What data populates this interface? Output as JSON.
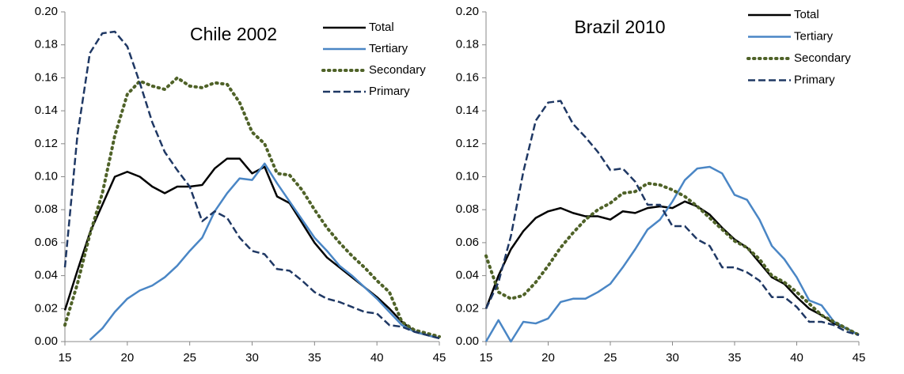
{
  "chart_data": [
    {
      "type": "line",
      "title": "Chile 2002",
      "x": [
        15,
        16,
        17,
        18,
        19,
        20,
        21,
        22,
        23,
        24,
        25,
        26,
        27,
        28,
        29,
        30,
        31,
        32,
        33,
        34,
        35,
        36,
        37,
        38,
        39,
        40,
        41,
        42,
        43,
        44,
        45
      ],
      "xlim": [
        15,
        45
      ],
      "xticks": [
        15,
        20,
        25,
        30,
        35,
        40,
        45
      ],
      "ylim": [
        0,
        0.2
      ],
      "yticks": [
        {
          "value": 0,
          "label": "0.00"
        },
        {
          "value": 0.02,
          "label": "0.02"
        },
        {
          "value": 0.04,
          "label": "0.04"
        },
        {
          "value": 0.06,
          "label": "0.06"
        },
        {
          "value": 0.08,
          "label": "0.08"
        },
        {
          "value": 0.1,
          "label": "0.10"
        },
        {
          "value": 0.12,
          "label": "0.12"
        },
        {
          "value": 0.14,
          "label": "0.14"
        },
        {
          "value": 0.16,
          "label": "0.16"
        },
        {
          "value": 0.18,
          "label": "0.18"
        },
        {
          "value": 0.2,
          "label": "0.20"
        }
      ],
      "grid": false,
      "legend": "top-right",
      "series": [
        {
          "name": "Total",
          "color": "#000000",
          "style": "solid",
          "values": [
            0.019,
            0.043,
            0.066,
            0.083,
            0.1,
            0.103,
            0.1,
            0.094,
            0.09,
            0.094,
            0.094,
            0.095,
            0.105,
            0.111,
            0.111,
            0.102,
            0.106,
            0.088,
            0.084,
            0.072,
            0.06,
            0.051,
            0.045,
            0.039,
            0.033,
            0.027,
            0.02,
            0.012,
            0.006,
            0.004,
            0.002
          ]
        },
        {
          "name": "Tertiary",
          "color": "#4a86c5",
          "style": "solid",
          "values": [
            null,
            null,
            0.001,
            0.008,
            0.018,
            0.026,
            0.031,
            0.034,
            0.039,
            0.046,
            0.055,
            0.063,
            0.079,
            0.09,
            0.099,
            0.098,
            0.108,
            0.096,
            0.085,
            0.074,
            0.063,
            0.055,
            0.046,
            0.04,
            0.033,
            0.026,
            0.018,
            0.01,
            0.006,
            0.004,
            0.002
          ]
        },
        {
          "name": "Secondary",
          "color": "#4f6228",
          "style": "dotted",
          "values": [
            0.01,
            0.035,
            0.065,
            0.09,
            0.125,
            0.15,
            0.158,
            0.155,
            0.153,
            0.16,
            0.155,
            0.154,
            0.157,
            0.156,
            0.145,
            0.127,
            0.12,
            0.102,
            0.101,
            0.092,
            0.08,
            0.069,
            0.06,
            0.052,
            0.045,
            0.037,
            0.03,
            0.012,
            0.007,
            0.005,
            0.003
          ]
        },
        {
          "name": "Primary",
          "color": "#1f3864",
          "style": "dashed",
          "values": [
            0.045,
            0.125,
            0.175,
            0.187,
            0.188,
            0.179,
            0.157,
            0.133,
            0.115,
            0.104,
            0.094,
            0.073,
            0.079,
            0.075,
            0.063,
            0.055,
            0.053,
            0.044,
            0.043,
            0.037,
            0.03,
            0.026,
            0.024,
            0.021,
            0.018,
            0.017,
            0.01,
            0.009,
            0.006,
            0.004,
            0.002
          ]
        }
      ]
    },
    {
      "type": "line",
      "title": "Brazil 2010",
      "x": [
        15,
        16,
        17,
        18,
        19,
        20,
        21,
        22,
        23,
        24,
        25,
        26,
        27,
        28,
        29,
        30,
        31,
        32,
        33,
        34,
        35,
        36,
        37,
        38,
        39,
        40,
        41,
        42,
        43,
        44,
        45
      ],
      "xlim": [
        15,
        45
      ],
      "xticks": [
        15,
        20,
        25,
        30,
        35,
        40,
        45
      ],
      "ylim": [
        0,
        0.2
      ],
      "yticks": [
        {
          "value": 0,
          "label": "0.00"
        },
        {
          "value": 0.02,
          "label": "0.02"
        },
        {
          "value": 0.04,
          "label": "0.04"
        },
        {
          "value": 0.06,
          "label": "0.06"
        },
        {
          "value": 0.08,
          "label": "0.08"
        },
        {
          "value": 0.1,
          "label": "0.10"
        },
        {
          "value": 0.12,
          "label": "0.12"
        },
        {
          "value": 0.14,
          "label": "0.14"
        },
        {
          "value": 0.16,
          "label": "0.16"
        },
        {
          "value": 0.18,
          "label": "0.18"
        },
        {
          "value": 0.2,
          "label": "0.20"
        }
      ],
      "grid": false,
      "legend": "top-right",
      "series": [
        {
          "name": "Total",
          "color": "#000000",
          "style": "solid",
          "values": [
            0.02,
            0.04,
            0.056,
            0.067,
            0.075,
            0.079,
            0.081,
            0.078,
            0.076,
            0.076,
            0.074,
            0.079,
            0.078,
            0.081,
            0.082,
            0.081,
            0.085,
            0.082,
            0.077,
            0.069,
            0.062,
            0.057,
            0.048,
            0.039,
            0.035,
            0.027,
            0.02,
            0.016,
            0.011,
            0.008,
            0.004
          ]
        },
        {
          "name": "Tertiary",
          "color": "#4a86c5",
          "style": "solid",
          "values": [
            0.0,
            0.013,
            0.0,
            0.012,
            0.011,
            0.014,
            0.024,
            0.026,
            0.026,
            0.03,
            0.035,
            0.045,
            0.056,
            0.068,
            0.074,
            0.085,
            0.098,
            0.105,
            0.106,
            0.102,
            0.089,
            0.086,
            0.074,
            0.058,
            0.05,
            0.039,
            0.025,
            0.022,
            0.012,
            0.008,
            0.004
          ]
        },
        {
          "name": "Secondary",
          "color": "#4f6228",
          "style": "dotted",
          "values": [
            0.052,
            0.03,
            0.026,
            0.028,
            0.036,
            0.046,
            0.057,
            0.066,
            0.074,
            0.08,
            0.084,
            0.09,
            0.091,
            0.096,
            0.095,
            0.092,
            0.088,
            0.082,
            0.075,
            0.068,
            0.061,
            0.057,
            0.05,
            0.04,
            0.036,
            0.03,
            0.023,
            0.016,
            0.012,
            0.008,
            0.004
          ]
        },
        {
          "name": "Primary",
          "color": "#1f3864",
          "style": "dashed",
          "values": [
            0.02,
            0.036,
            0.064,
            0.103,
            0.134,
            0.145,
            0.146,
            0.132,
            0.124,
            0.115,
            0.104,
            0.105,
            0.097,
            0.083,
            0.083,
            0.07,
            0.07,
            0.062,
            0.058,
            0.045,
            0.045,
            0.042,
            0.037,
            0.027,
            0.027,
            0.021,
            0.012,
            0.012,
            0.01,
            0.006,
            0.004
          ]
        }
      ]
    }
  ]
}
